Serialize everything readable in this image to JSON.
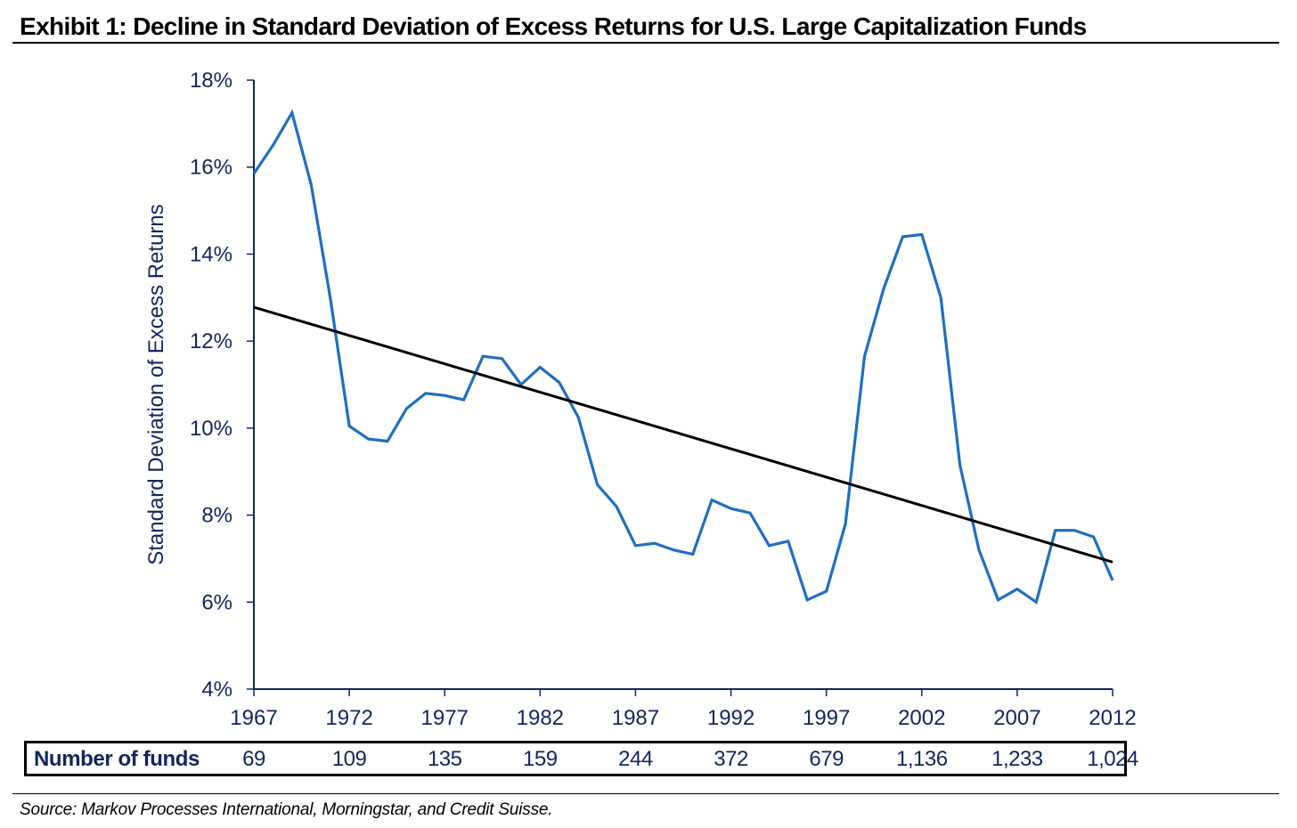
{
  "title": "Exhibit 1: Decline in Standard Deviation of Excess Returns for U.S. Large Capitalization Funds",
  "source": "Source: Markov Processes International, Morningstar, and Credit Suisse.",
  "colors": {
    "series": "#1f6fbd",
    "trend": "#000000",
    "axis": "#13255b",
    "text": "#13255b"
  },
  "funds_table": {
    "label": "Number of funds",
    "years": [
      "1967",
      "1972",
      "1977",
      "1982",
      "1987",
      "1992",
      "1997",
      "2002",
      "2007",
      "2012"
    ],
    "values": [
      "69",
      "109",
      "135",
      "159",
      "244",
      "372",
      "679",
      "1,136",
      "1,233",
      "1,024"
    ]
  },
  "chart_data": {
    "type": "line",
    "title": "Exhibit 1: Decline in Standard Deviation of Excess Returns for U.S. Large Capitalization Funds",
    "xlabel": "",
    "ylabel": "Standard Deviation of Excess Returns",
    "xlim": [
      1967,
      2012
    ],
    "ylim": [
      4,
      18
    ],
    "x_ticks": [
      "1967",
      "1972",
      "1977",
      "1982",
      "1987",
      "1992",
      "1997",
      "2002",
      "2007",
      "2012"
    ],
    "y_ticks": [
      "4%",
      "6%",
      "8%",
      "10%",
      "12%",
      "14%",
      "16%",
      "18%"
    ],
    "y_tick_values": [
      4,
      6,
      8,
      10,
      12,
      14,
      16,
      18
    ],
    "grid": false,
    "legend": "none",
    "series": [
      {
        "name": "Standard Deviation of Excess Returns",
        "x": [
          1967,
          1968,
          1969,
          1970,
          1971,
          1972,
          1973,
          1974,
          1975,
          1976,
          1977,
          1978,
          1979,
          1980,
          1981,
          1982,
          1983,
          1984,
          1985,
          1986,
          1987,
          1988,
          1989,
          1990,
          1991,
          1992,
          1993,
          1994,
          1995,
          1996,
          1997,
          1998,
          1999,
          2000,
          2001,
          2002,
          2003,
          2004,
          2005,
          2006,
          2007,
          2008,
          2009,
          2010,
          2011,
          2012
        ],
        "values": [
          15.85,
          16.5,
          17.25,
          15.6,
          13.0,
          10.05,
          9.75,
          9.7,
          10.45,
          10.8,
          10.75,
          10.65,
          11.65,
          11.6,
          11.0,
          11.4,
          11.05,
          10.25,
          8.7,
          8.2,
          7.3,
          7.35,
          7.2,
          7.1,
          8.35,
          8.15,
          8.05,
          7.3,
          7.4,
          6.05,
          6.25,
          7.8,
          11.65,
          13.2,
          14.4,
          14.45,
          13.0,
          9.15,
          7.2,
          6.05,
          6.3,
          6.0,
          7.65,
          7.65,
          7.5,
          6.5
        ]
      },
      {
        "name": "Linear trend",
        "x": [
          1967,
          2012
        ],
        "values": [
          12.78,
          6.92
        ]
      }
    ]
  }
}
